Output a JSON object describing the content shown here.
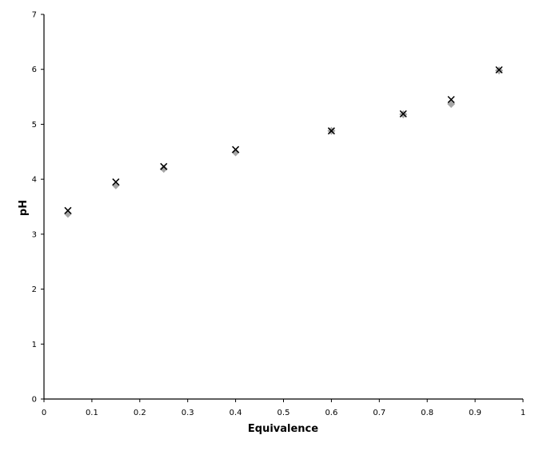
{
  "chart_data": {
    "type": "scatter",
    "title": "",
    "xlabel": "Equivalence",
    "ylabel": "pH",
    "xlim": [
      0,
      1
    ],
    "ylim": [
      0,
      7
    ],
    "x_ticks": [
      0,
      0.1,
      0.2,
      0.3,
      0.4,
      0.5,
      0.6,
      0.7,
      0.8,
      0.9,
      1
    ],
    "y_ticks": [
      0,
      1,
      2,
      3,
      4,
      5,
      6,
      7
    ],
    "x_tick_labels": [
      "0",
      "0.1",
      "0.2",
      "0.3",
      "0.4",
      "0.5",
      "0.6",
      "0.7",
      "0.8",
      "0.9",
      "1"
    ],
    "y_tick_labels": [
      "0",
      "1",
      "2",
      "3",
      "4",
      "5",
      "6",
      "7"
    ],
    "grid": false,
    "legend": "none",
    "series": [
      {
        "marker": "diamond",
        "color": "#a6a6a6",
        "x": [
          0.05,
          0.15,
          0.25,
          0.4,
          0.6,
          0.75,
          0.85,
          0.95
        ],
        "y": [
          3.37,
          3.89,
          4.19,
          4.49,
          4.88,
          5.18,
          5.37,
          5.98
        ]
      },
      {
        "marker": "x",
        "color": "#000000",
        "x": [
          0.05,
          0.15,
          0.25,
          0.4,
          0.6,
          0.75,
          0.85,
          0.95
        ],
        "y": [
          3.43,
          3.95,
          4.23,
          4.54,
          4.88,
          5.19,
          5.45,
          5.99
        ]
      }
    ]
  }
}
